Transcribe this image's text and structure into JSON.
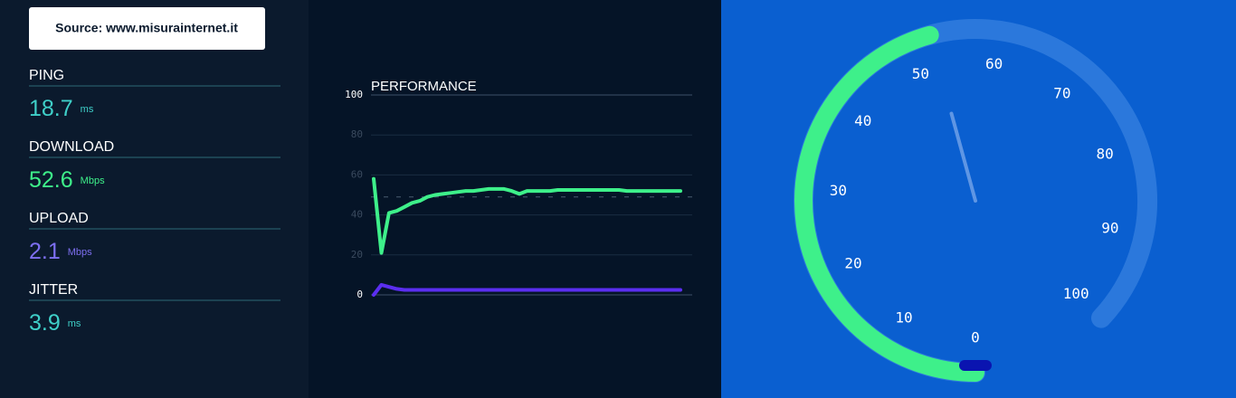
{
  "source": "Source: www.misurainternet.it",
  "metrics": [
    {
      "label": "PING",
      "value": 18.7,
      "unit": "ms",
      "color": "#3fd0c9"
    },
    {
      "label": "DOWNLOAD",
      "value": 52.6,
      "unit": "Mbps",
      "color": "#3ef08a"
    },
    {
      "label": "UPLOAD",
      "value": 2.1,
      "unit": "Mbps",
      "color": "#7d6ff0"
    },
    {
      "label": "JITTER",
      "value": 3.9,
      "unit": "ms",
      "color": "#3fd0c9"
    }
  ],
  "chart_data": {
    "type": "line",
    "title": "PERFORMANCE",
    "x": [
      0,
      1,
      2,
      3,
      4,
      5,
      6,
      7,
      8,
      9,
      10,
      11,
      12,
      13,
      14,
      15,
      16,
      17,
      18,
      19,
      20,
      21,
      22,
      23,
      24,
      25,
      26,
      27,
      28,
      29,
      30,
      31,
      32,
      33,
      34,
      35,
      36,
      37,
      38,
      39,
      40
    ],
    "xlim": [
      0,
      40
    ],
    "series": [
      {
        "color": "#3ef08a",
        "values": [
          58,
          21,
          41,
          42,
          44,
          46,
          47,
          49,
          50,
          50.5,
          51,
          51.5,
          52,
          52,
          52.5,
          53,
          53,
          53,
          52,
          50.5,
          52,
          52,
          52,
          52,
          52.5,
          52.5,
          52.5,
          52.5,
          52.5,
          52.5,
          52.5,
          52.5,
          52.5,
          52,
          52,
          52,
          52,
          52,
          52,
          52,
          52
        ]
      },
      {
        "color": "#5b2ef0",
        "values": [
          0,
          5,
          4,
          3,
          2.5,
          2.5,
          2.5,
          2.5,
          2.5,
          2.5,
          2.5,
          2.5,
          2.5,
          2.5,
          2.5,
          2.5,
          2.5,
          2.5,
          2.5,
          2.5,
          2.5,
          2.5,
          2.5,
          2.5,
          2.5,
          2.5,
          2.5,
          2.5,
          2.5,
          2.5,
          2.5,
          2.5,
          2.5,
          2.5,
          2.5,
          2.5,
          2.5,
          2.5,
          2.5,
          2.5,
          2.5
        ]
      }
    ],
    "reference_line": 49,
    "ylim": [
      0,
      100
    ],
    "yticks": [
      0,
      20,
      40,
      60,
      80,
      100
    ],
    "grid": true
  },
  "gauge": {
    "min": 0,
    "max": 100,
    "ticks": [
      0,
      10,
      20,
      30,
      40,
      50,
      60,
      70,
      80,
      90,
      100
    ]
  }
}
